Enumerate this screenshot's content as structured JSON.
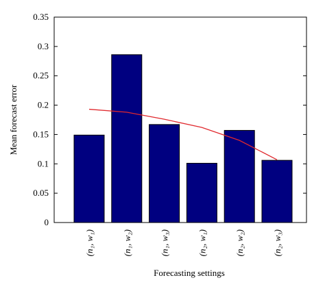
{
  "chart_data": {
    "type": "bar",
    "xlabel": "Forecasting settings",
    "ylabel": "Mean forecast error",
    "categories": [
      "(n₁, w₁)",
      "(n₁, w₂)",
      "(n₁, w₃)",
      "(n₂, w₁)",
      "(n₂, w₂)",
      "(n₂, w₃)"
    ],
    "series": [
      {
        "type": "bar",
        "color": "#000080",
        "values": [
          0.149,
          0.286,
          0.167,
          0.101,
          0.157,
          0.106
        ]
      },
      {
        "type": "line",
        "color": "#e0282d",
        "values": [
          0.193,
          0.188,
          0.176,
          0.162,
          0.14,
          0.107
        ]
      }
    ],
    "ylim": [
      0,
      0.35
    ],
    "yticks": [
      0,
      0.05,
      0.1,
      0.15,
      0.2,
      0.25,
      0.3,
      0.35
    ]
  }
}
